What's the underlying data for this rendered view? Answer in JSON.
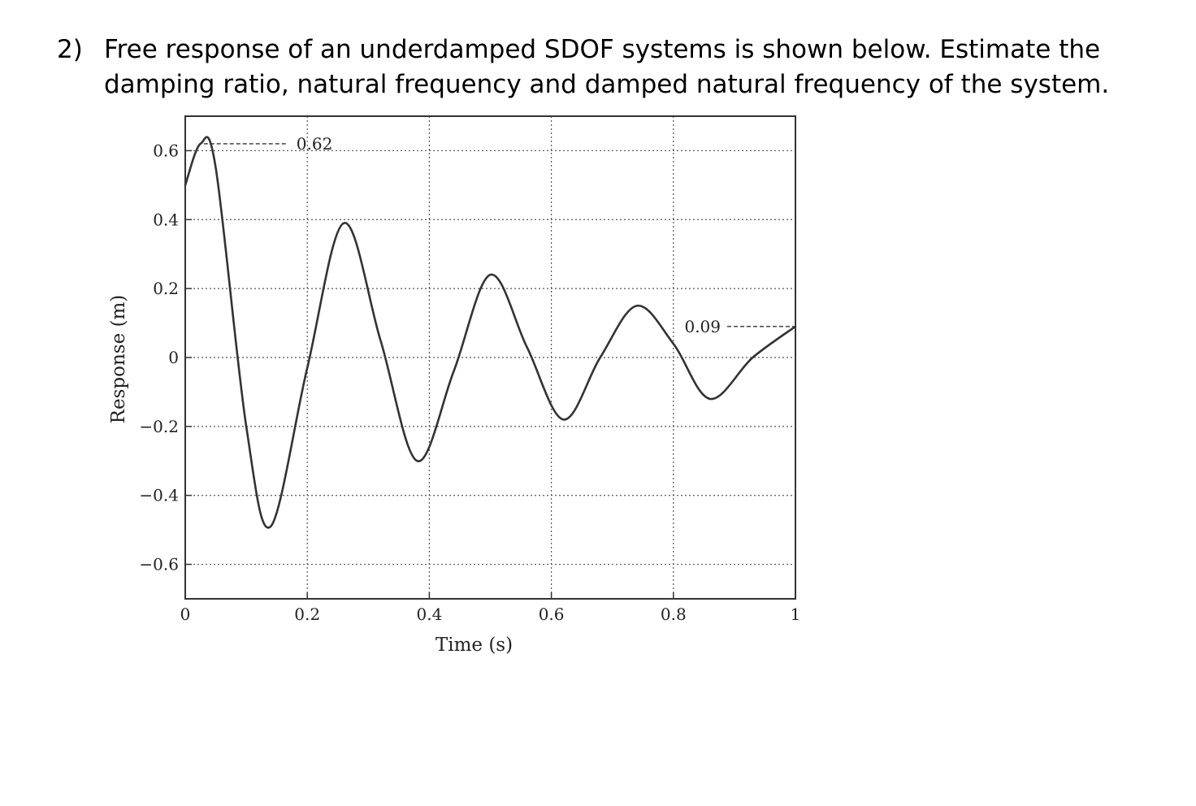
{
  "question": {
    "number": "2)",
    "text": "Free response of an underdamped SDOF systems is shown below. Estimate the damping ratio, natural frequency and damped natural frequency of the system."
  },
  "chart_data": {
    "type": "line",
    "title": "",
    "xlabel": "Time (s)",
    "ylabel": "Response (m)",
    "xlim": [
      0,
      1
    ],
    "ylim": [
      -0.7,
      0.7
    ],
    "x_ticks": [
      0,
      0.2,
      0.4,
      0.6,
      0.8,
      1
    ],
    "x_tick_labels": [
      "0",
      "0.2",
      "0.4",
      "0.6",
      "0.8",
      "1"
    ],
    "y_ticks": [
      0.6,
      0.4,
      0.2,
      0,
      -0.2,
      -0.4,
      -0.6
    ],
    "y_tick_labels": [
      "0.6",
      "0.4",
      "0.2",
      "0",
      "−0.2",
      "−0.4",
      "−0.6"
    ],
    "grid": true,
    "grid_style": "dotted",
    "line_color": "#333333",
    "series": [
      {
        "x": [
          0,
          0.025,
          0.05,
          0.1,
          0.14,
          0.2,
          0.26,
          0.32,
          0.38,
          0.44,
          0.5,
          0.56,
          0.62,
          0.68,
          0.74,
          0.8,
          0.86,
          0.93,
          1.0
        ],
        "values": [
          0.5,
          0.62,
          0.55,
          -0.2,
          -0.49,
          -0.03,
          0.39,
          0.05,
          -0.3,
          -0.04,
          0.24,
          0.03,
          -0.18,
          0.0,
          0.15,
          0.04,
          -0.12,
          0.0,
          0.09
        ]
      }
    ],
    "annotations": [
      {
        "label": "0.62",
        "x": 0.025,
        "y": 0.62,
        "side": "right"
      },
      {
        "label": "0.09",
        "x": 1.0,
        "y": 0.09,
        "side": "left"
      }
    ]
  }
}
